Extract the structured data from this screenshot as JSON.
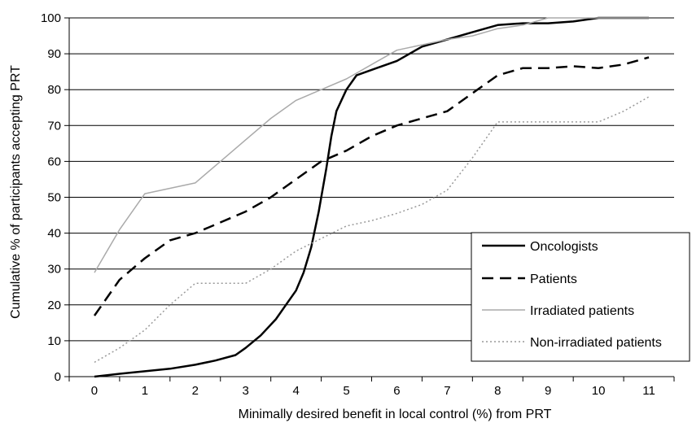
{
  "chart_data": {
    "type": "line",
    "title": "",
    "xlabel": "Minimally desired benefit in local control (%) from PRT",
    "ylabel": "Cumulative % of participants accepting PRT",
    "xlim": [
      -0.5,
      11.5
    ],
    "ylim": [
      0,
      100
    ],
    "x_ticks": [
      "0",
      "1",
      "2",
      "3",
      "4",
      "5",
      "6",
      "7",
      "8",
      "9",
      "10",
      "11"
    ],
    "y_ticks": [
      "0",
      "10",
      "20",
      "30",
      "40",
      "50",
      "60",
      "70",
      "80",
      "90",
      "100"
    ],
    "grid": "horizontal",
    "legend_position": "bottom-right",
    "series": [
      {
        "name": "Oncologists",
        "style": "solid",
        "color": "#000000",
        "points": [
          [
            0,
            0
          ],
          [
            0.5,
            0.8
          ],
          [
            1,
            1.5
          ],
          [
            1.5,
            2.2
          ],
          [
            2,
            3.3
          ],
          [
            2.4,
            4.5
          ],
          [
            2.8,
            6
          ],
          [
            3,
            8
          ],
          [
            3.3,
            11.5
          ],
          [
            3.6,
            16
          ],
          [
            3.8,
            20
          ],
          [
            4,
            24
          ],
          [
            4.15,
            29
          ],
          [
            4.3,
            36
          ],
          [
            4.45,
            46
          ],
          [
            4.6,
            58
          ],
          [
            4.7,
            67
          ],
          [
            4.8,
            74
          ],
          [
            5,
            80
          ],
          [
            5.2,
            84
          ],
          [
            5.6,
            86
          ],
          [
            6,
            88
          ],
          [
            6.5,
            92
          ],
          [
            7,
            94
          ],
          [
            7.5,
            96
          ],
          [
            8,
            98
          ],
          [
            8.5,
            98.5
          ],
          [
            9,
            98.5
          ],
          [
            9.5,
            99
          ],
          [
            10,
            100
          ],
          [
            10.5,
            100
          ],
          [
            11,
            100
          ]
        ]
      },
      {
        "name": "Patients",
        "style": "dashed",
        "color": "#000000",
        "points": [
          [
            0,
            17
          ],
          [
            0.5,
            27
          ],
          [
            1,
            33
          ],
          [
            1.5,
            38
          ],
          [
            2,
            40
          ],
          [
            2.5,
            43
          ],
          [
            3,
            46
          ],
          [
            3.5,
            50
          ],
          [
            4,
            55
          ],
          [
            4.5,
            60
          ],
          [
            5,
            63
          ],
          [
            5.5,
            67
          ],
          [
            6,
            70
          ],
          [
            6.5,
            72
          ],
          [
            7,
            74
          ],
          [
            7.5,
            79
          ],
          [
            8,
            84
          ],
          [
            8.5,
            86
          ],
          [
            9,
            86
          ],
          [
            9.5,
            86.5
          ],
          [
            10,
            86
          ],
          [
            10.5,
            87
          ],
          [
            11,
            89
          ]
        ]
      },
      {
        "name": "Irradiated patients",
        "style": "solid",
        "color": "#aaaaaa",
        "points": [
          [
            0,
            29
          ],
          [
            0.5,
            41
          ],
          [
            1,
            51
          ],
          [
            1.5,
            52.5
          ],
          [
            2,
            54
          ],
          [
            2.5,
            60
          ],
          [
            3,
            66
          ],
          [
            3.5,
            72
          ],
          [
            4,
            77
          ],
          [
            4.5,
            80
          ],
          [
            5,
            83
          ],
          [
            5.5,
            87
          ],
          [
            6,
            91
          ],
          [
            6.5,
            92.5
          ],
          [
            7,
            94
          ],
          [
            7.5,
            95
          ],
          [
            8,
            97
          ],
          [
            8.5,
            98
          ],
          [
            9,
            100
          ],
          [
            10,
            100
          ],
          [
            11,
            100
          ]
        ]
      },
      {
        "name": "Non-irradiated patients",
        "style": "dotted",
        "color": "#999999",
        "points": [
          [
            0,
            4
          ],
          [
            0.5,
            8
          ],
          [
            1,
            13
          ],
          [
            1.5,
            20
          ],
          [
            2,
            26
          ],
          [
            2.5,
            26
          ],
          [
            3,
            26
          ],
          [
            3.5,
            30
          ],
          [
            4,
            35
          ],
          [
            4.5,
            38.5
          ],
          [
            5,
            42
          ],
          [
            5.5,
            43.5
          ],
          [
            6,
            45.5
          ],
          [
            6.5,
            48
          ],
          [
            7,
            52
          ],
          [
            7.5,
            61
          ],
          [
            8,
            71
          ],
          [
            8.5,
            71
          ],
          [
            9,
            71
          ],
          [
            9.5,
            71
          ],
          [
            10,
            71
          ],
          [
            10.5,
            74
          ],
          [
            11,
            78
          ]
        ]
      }
    ]
  }
}
